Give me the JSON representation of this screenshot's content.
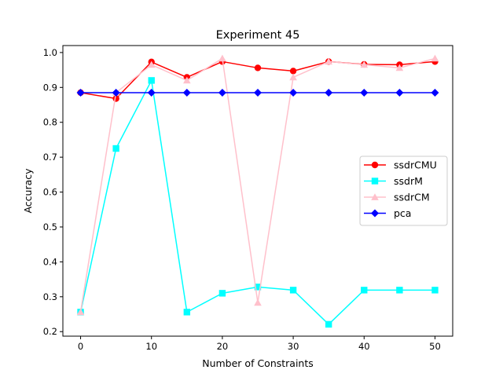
{
  "chart_data": {
    "type": "line",
    "title": "Experiment 45",
    "xlabel": "Number of Constraints",
    "ylabel": "Accuracy",
    "x": [
      0,
      5,
      10,
      15,
      20,
      25,
      30,
      35,
      40,
      45,
      50
    ],
    "xlim": [
      -2.5,
      52.5
    ],
    "ylim": [
      0.187,
      1.02
    ],
    "xticks": [
      0,
      10,
      20,
      30,
      40,
      50
    ],
    "yticks": [
      0.2,
      0.3,
      0.4,
      0.5,
      0.6,
      0.7,
      0.8,
      0.9,
      1.0
    ],
    "xtick_labels": [
      "0",
      "10",
      "20",
      "30",
      "40",
      "50"
    ],
    "ytick_labels": [
      "0.2",
      "0.3",
      "0.4",
      "0.5",
      "0.6",
      "0.7",
      "0.8",
      "0.9",
      "1.0"
    ],
    "grid": false,
    "legend_position": "center-right",
    "series": [
      {
        "name": "ssdrCMU",
        "color": "#ff0000",
        "marker": "circle",
        "values": [
          0.885,
          0.868,
          0.973,
          0.929,
          0.974,
          0.956,
          0.947,
          0.974,
          0.966,
          0.965,
          0.974
        ]
      },
      {
        "name": "ssdrM",
        "color": "#00ffff",
        "marker": "square",
        "values": [
          0.256,
          0.725,
          0.92,
          0.256,
          0.31,
          0.328,
          0.319,
          0.221,
          0.319,
          0.319,
          0.319
        ]
      },
      {
        "name": "ssdrCM",
        "color": "#ffc0cb",
        "marker": "triangle",
        "values": [
          0.256,
          0.885,
          0.965,
          0.92,
          0.983,
          0.283,
          0.929,
          0.974,
          0.965,
          0.956,
          0.983
        ]
      },
      {
        "name": "pca",
        "color": "#0000ff",
        "marker": "diamond",
        "values": [
          0.885,
          0.885,
          0.885,
          0.885,
          0.885,
          0.885,
          0.885,
          0.885,
          0.885,
          0.885,
          0.885
        ]
      }
    ]
  }
}
